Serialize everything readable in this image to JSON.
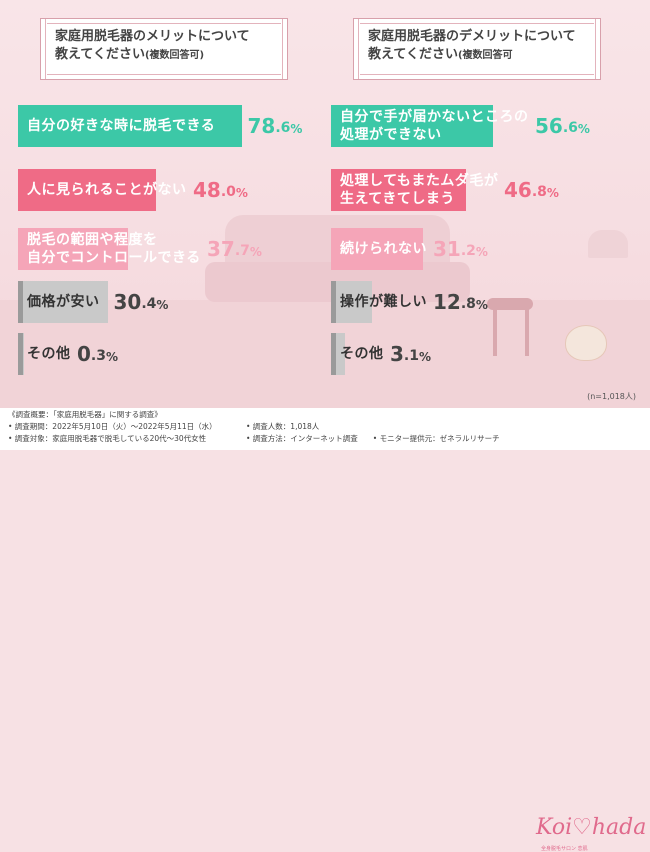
{
  "chart_data": [
    {
      "type": "bar",
      "title": "家庭用脱毛器のメリットについて\n教えてください",
      "title_note": "(複数回答可)",
      "categories": [
        "自分の好きな時に脱毛できる",
        "人に見られることがない",
        "脱毛の範囲や程度を\n自分でコントロールできる",
        "価格が安い",
        "その他"
      ],
      "values": [
        78.6,
        48.0,
        37.7,
        30.4,
        0.3
      ],
      "value_labels": [
        [
          "78",
          ".6",
          "%"
        ],
        [
          "48",
          ".0",
          "%"
        ],
        [
          "37",
          ".7",
          "%"
        ],
        [
          "30",
          ".4",
          "%"
        ],
        [
          "0",
          ".3",
          "%"
        ]
      ],
      "colors": [
        "#3cc8a7",
        "#ef6b86",
        "#f5a5b8",
        "#c9c9c9",
        "#c9c9c9"
      ],
      "label_colors": [
        "#ffffff",
        "#ffffff",
        "#ffffff",
        "#333333",
        "#333333"
      ],
      "value_colors": [
        "#3cc8a7",
        "#ef6b86",
        "#f5a5b8",
        "#444444",
        "#444444"
      ],
      "xlim": [
        0,
        100
      ]
    },
    {
      "type": "bar",
      "title": "家庭用脱毛器のデメリットについて\n教えてください",
      "title_note": "(複数回答可",
      "categories": [
        "自分で手が届かないところの\n処理ができない",
        "処理してもまたムダ毛が\n生えてきてしまう",
        "続けられない",
        "操作が難しい",
        "その他"
      ],
      "values": [
        56.6,
        46.8,
        31.2,
        12.8,
        3.1
      ],
      "value_labels": [
        [
          "56",
          ".6",
          "%"
        ],
        [
          "46",
          ".8",
          "%"
        ],
        [
          "31",
          ".2",
          "%"
        ],
        [
          "12",
          ".8",
          "%"
        ],
        [
          "3",
          ".1",
          "%"
        ]
      ],
      "colors": [
        "#3cc8a7",
        "#ef6b86",
        "#f5a5b8",
        "#c9c9c9",
        "#c9c9c9"
      ],
      "label_colors": [
        "#ffffff",
        "#ffffff",
        "#ffffff",
        "#333333",
        "#333333"
      ],
      "value_colors": [
        "#3cc8a7",
        "#ef6b86",
        "#f5a5b8",
        "#444444",
        "#444444"
      ],
      "xlim": [
        0,
        100
      ]
    }
  ],
  "sample_note": "(n=1,018人)",
  "footer": {
    "line1": "《調査概要：「家庭用脱毛器」に関する調査》",
    "line2": "• 調査期間：2022年5月10日（火）～2022年5月11日（水）",
    "line3": "• 調査対象：家庭用脱毛器で脱毛している20代～30代女性",
    "line4": "• 調査人数：1,018人",
    "line5": "• 調査方法：インターネット調査　　• モニター提供元：ゼネラルリサーチ"
  },
  "logo": {
    "text": "Koi♡hada",
    "sub": "全身脱毛サロン 恋肌"
  }
}
